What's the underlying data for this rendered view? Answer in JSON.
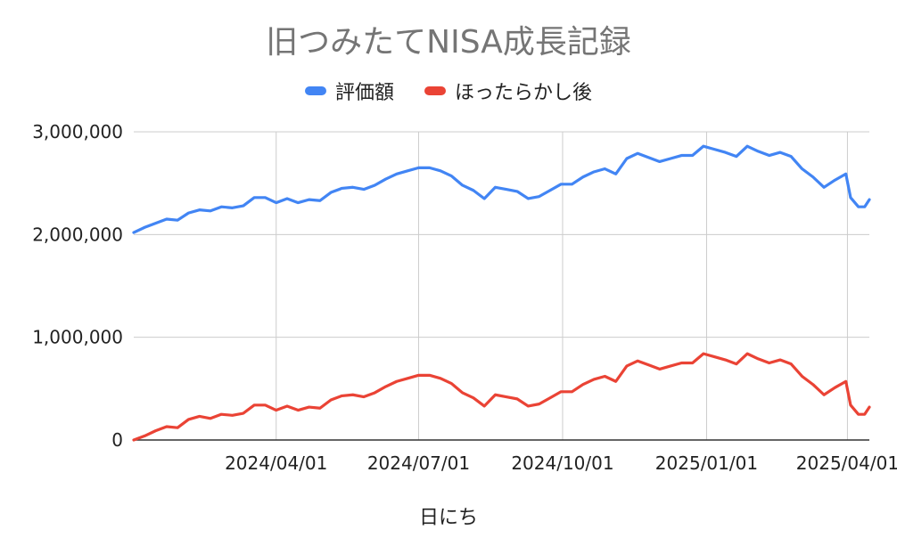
{
  "chart_data": {
    "type": "line",
    "title": "旧つみたてNISA成長記録",
    "xlabel": "日にち",
    "ylabel": "",
    "ylim": [
      0,
      3000000
    ],
    "y_ticks": [
      0,
      1000000,
      2000000,
      3000000
    ],
    "y_tick_labels": [
      "0",
      "1,000,000",
      "2,000,000",
      "3,000,000"
    ],
    "x_start": "2024-01-01",
    "x_end": "2025-04-15",
    "x_ticks": [
      "2024-04-01",
      "2024-07-01",
      "2024-10-01",
      "2025-01-01",
      "2025-04-01"
    ],
    "x_tick_labels": [
      "2024/04/01",
      "2024/07/01",
      "2024/10/01",
      "2025/01/01",
      "2025/04/01"
    ],
    "grid": true,
    "legend_position": "top",
    "series": [
      {
        "name": "評価額",
        "color": "#4285f4",
        "points": [
          [
            "2024-01-01",
            2020000
          ],
          [
            "2024-01-08",
            2070000
          ],
          [
            "2024-01-15",
            2110000
          ],
          [
            "2024-01-22",
            2150000
          ],
          [
            "2024-01-29",
            2140000
          ],
          [
            "2024-02-05",
            2210000
          ],
          [
            "2024-02-12",
            2240000
          ],
          [
            "2024-02-19",
            2230000
          ],
          [
            "2024-02-26",
            2270000
          ],
          [
            "2024-03-04",
            2260000
          ],
          [
            "2024-03-11",
            2280000
          ],
          [
            "2024-03-18",
            2360000
          ],
          [
            "2024-03-25",
            2360000
          ],
          [
            "2024-04-01",
            2310000
          ],
          [
            "2024-04-08",
            2350000
          ],
          [
            "2024-04-15",
            2310000
          ],
          [
            "2024-04-22",
            2340000
          ],
          [
            "2024-04-29",
            2330000
          ],
          [
            "2024-05-06",
            2410000
          ],
          [
            "2024-05-13",
            2450000
          ],
          [
            "2024-05-20",
            2460000
          ],
          [
            "2024-05-27",
            2440000
          ],
          [
            "2024-06-03",
            2480000
          ],
          [
            "2024-06-10",
            2540000
          ],
          [
            "2024-06-17",
            2590000
          ],
          [
            "2024-06-24",
            2620000
          ],
          [
            "2024-07-01",
            2650000
          ],
          [
            "2024-07-08",
            2650000
          ],
          [
            "2024-07-15",
            2620000
          ],
          [
            "2024-07-22",
            2570000
          ],
          [
            "2024-07-29",
            2480000
          ],
          [
            "2024-08-05",
            2430000
          ],
          [
            "2024-08-12",
            2350000
          ],
          [
            "2024-08-19",
            2460000
          ],
          [
            "2024-08-26",
            2440000
          ],
          [
            "2024-09-02",
            2420000
          ],
          [
            "2024-09-09",
            2350000
          ],
          [
            "2024-09-16",
            2370000
          ],
          [
            "2024-09-23",
            2430000
          ],
          [
            "2024-09-30",
            2490000
          ],
          [
            "2024-10-07",
            2490000
          ],
          [
            "2024-10-14",
            2560000
          ],
          [
            "2024-10-21",
            2610000
          ],
          [
            "2024-10-28",
            2640000
          ],
          [
            "2024-11-04",
            2590000
          ],
          [
            "2024-11-11",
            2740000
          ],
          [
            "2024-11-18",
            2790000
          ],
          [
            "2024-11-25",
            2750000
          ],
          [
            "2024-12-02",
            2710000
          ],
          [
            "2024-12-09",
            2740000
          ],
          [
            "2024-12-16",
            2770000
          ],
          [
            "2024-12-23",
            2770000
          ],
          [
            "2024-12-30",
            2860000
          ],
          [
            "2025-01-06",
            2830000
          ],
          [
            "2025-01-13",
            2800000
          ],
          [
            "2025-01-20",
            2760000
          ],
          [
            "2025-01-27",
            2860000
          ],
          [
            "2025-02-03",
            2810000
          ],
          [
            "2025-02-10",
            2770000
          ],
          [
            "2025-02-17",
            2800000
          ],
          [
            "2025-02-24",
            2760000
          ],
          [
            "2025-03-03",
            2640000
          ],
          [
            "2025-03-10",
            2560000
          ],
          [
            "2025-03-17",
            2460000
          ],
          [
            "2025-03-24",
            2530000
          ],
          [
            "2025-03-31",
            2590000
          ],
          [
            "2025-04-03",
            2360000
          ],
          [
            "2025-04-08",
            2270000
          ],
          [
            "2025-04-12",
            2270000
          ],
          [
            "2025-04-15",
            2340000
          ]
        ]
      },
      {
        "name": "ほったらかし後",
        "color": "#ea4335",
        "points": [
          [
            "2024-01-01",
            0
          ],
          [
            "2024-01-08",
            40000
          ],
          [
            "2024-01-15",
            90000
          ],
          [
            "2024-01-22",
            130000
          ],
          [
            "2024-01-29",
            120000
          ],
          [
            "2024-02-05",
            200000
          ],
          [
            "2024-02-12",
            230000
          ],
          [
            "2024-02-19",
            210000
          ],
          [
            "2024-02-26",
            250000
          ],
          [
            "2024-03-04",
            240000
          ],
          [
            "2024-03-11",
            260000
          ],
          [
            "2024-03-18",
            340000
          ],
          [
            "2024-03-25",
            340000
          ],
          [
            "2024-04-01",
            290000
          ],
          [
            "2024-04-08",
            330000
          ],
          [
            "2024-04-15",
            290000
          ],
          [
            "2024-04-22",
            320000
          ],
          [
            "2024-04-29",
            310000
          ],
          [
            "2024-05-06",
            390000
          ],
          [
            "2024-05-13",
            430000
          ],
          [
            "2024-05-20",
            440000
          ],
          [
            "2024-05-27",
            420000
          ],
          [
            "2024-06-03",
            460000
          ],
          [
            "2024-06-10",
            520000
          ],
          [
            "2024-06-17",
            570000
          ],
          [
            "2024-06-24",
            600000
          ],
          [
            "2024-07-01",
            630000
          ],
          [
            "2024-07-08",
            630000
          ],
          [
            "2024-07-15",
            600000
          ],
          [
            "2024-07-22",
            550000
          ],
          [
            "2024-07-29",
            460000
          ],
          [
            "2024-08-05",
            410000
          ],
          [
            "2024-08-12",
            330000
          ],
          [
            "2024-08-19",
            440000
          ],
          [
            "2024-08-26",
            420000
          ],
          [
            "2024-09-02",
            400000
          ],
          [
            "2024-09-09",
            330000
          ],
          [
            "2024-09-16",
            350000
          ],
          [
            "2024-09-23",
            410000
          ],
          [
            "2024-09-30",
            470000
          ],
          [
            "2024-10-07",
            470000
          ],
          [
            "2024-10-14",
            540000
          ],
          [
            "2024-10-21",
            590000
          ],
          [
            "2024-10-28",
            620000
          ],
          [
            "2024-11-04",
            570000
          ],
          [
            "2024-11-11",
            720000
          ],
          [
            "2024-11-18",
            770000
          ],
          [
            "2024-11-25",
            730000
          ],
          [
            "2024-12-02",
            690000
          ],
          [
            "2024-12-09",
            720000
          ],
          [
            "2024-12-16",
            750000
          ],
          [
            "2024-12-23",
            750000
          ],
          [
            "2024-12-30",
            840000
          ],
          [
            "2025-01-06",
            810000
          ],
          [
            "2025-01-13",
            780000
          ],
          [
            "2025-01-20",
            740000
          ],
          [
            "2025-01-27",
            840000
          ],
          [
            "2025-02-03",
            790000
          ],
          [
            "2025-02-10",
            750000
          ],
          [
            "2025-02-17",
            780000
          ],
          [
            "2025-02-24",
            740000
          ],
          [
            "2025-03-03",
            620000
          ],
          [
            "2025-03-10",
            540000
          ],
          [
            "2025-03-17",
            440000
          ],
          [
            "2025-03-24",
            510000
          ],
          [
            "2025-03-31",
            570000
          ],
          [
            "2025-04-03",
            340000
          ],
          [
            "2025-04-08",
            250000
          ],
          [
            "2025-04-12",
            250000
          ],
          [
            "2025-04-15",
            320000
          ]
        ]
      }
    ]
  }
}
